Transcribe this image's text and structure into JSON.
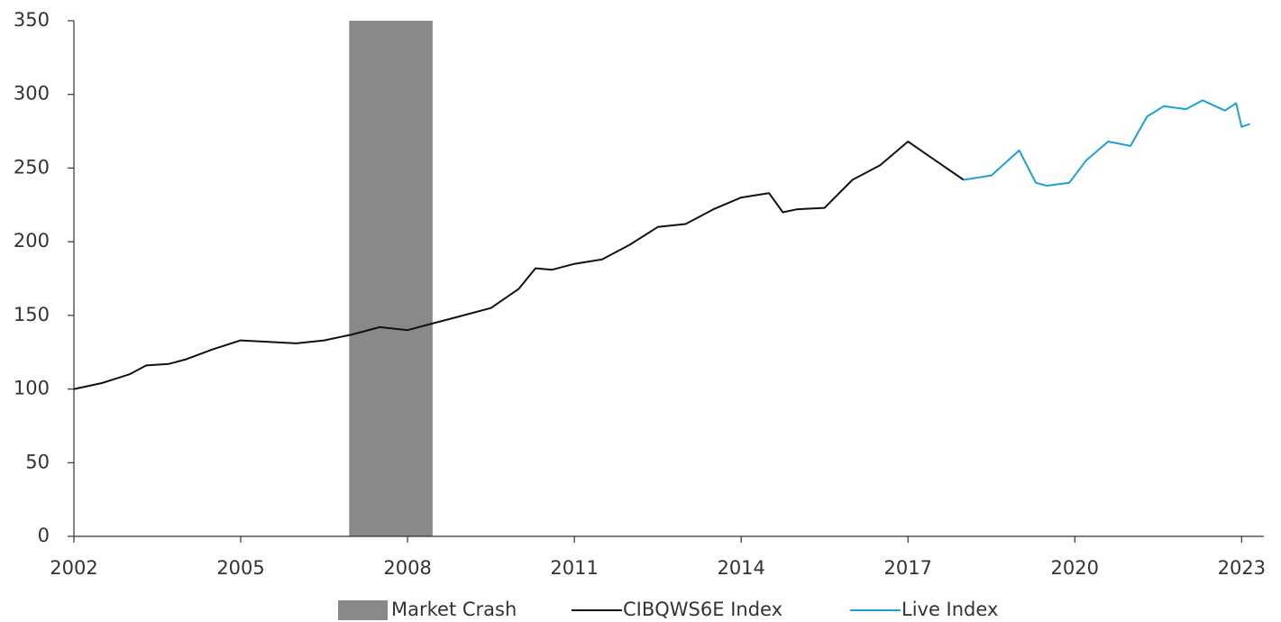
{
  "chart_data": {
    "type": "line",
    "xlim": [
      2002,
      2023.4
    ],
    "xticks": [
      2002,
      2005,
      2008,
      2011,
      2014,
      2017,
      2020,
      2023
    ],
    "ylim": [
      0,
      350
    ],
    "yticks": [
      0,
      50,
      100,
      150,
      200,
      250,
      300,
      350
    ],
    "grid": false,
    "legend": "bottom",
    "shaded_regions": [
      {
        "name": "Market Crash",
        "color": "#88898b",
        "x": [
          2006.95,
          2008.45
        ]
      }
    ],
    "series": [
      {
        "name": "CIBQWS6E Index",
        "color": "#111111",
        "x": [
          2002,
          2002.5,
          2003,
          2003.3,
          2003.7,
          2004,
          2004.5,
          2005,
          2005.5,
          2006,
          2006.5,
          2007,
          2007.5,
          2008,
          2008.5,
          2009,
          2009.5,
          2010,
          2010.3,
          2010.6,
          2011,
          2011.5,
          2012,
          2012.5,
          2013,
          2013.5,
          2014,
          2014.5,
          2014.75,
          2015,
          2015.5,
          2016,
          2016.5,
          2017,
          2017.5,
          2018
        ],
        "values": [
          100,
          104,
          110,
          116,
          117,
          120,
          127,
          133,
          132,
          131,
          133,
          137,
          142,
          140,
          145,
          150,
          155,
          168,
          182,
          181,
          185,
          188,
          198,
          210,
          212,
          222,
          230,
          233,
          220,
          222,
          223,
          242,
          252,
          268,
          255,
          242
        ]
      },
      {
        "name": "Live Index",
        "color": "#1ba1d6",
        "x": [
          2018,
          2018.5,
          2019,
          2019.3,
          2019.5,
          2019.9,
          2020.2,
          2020.6,
          2021,
          2021.3,
          2021.6,
          2022,
          2022.3,
          2022.7,
          2022.9,
          2023,
          2023.15
        ],
        "values": [
          242,
          245,
          262,
          240,
          238,
          240,
          255,
          268,
          265,
          285,
          292,
          290,
          296,
          289,
          294,
          278,
          280
        ]
      }
    ]
  }
}
